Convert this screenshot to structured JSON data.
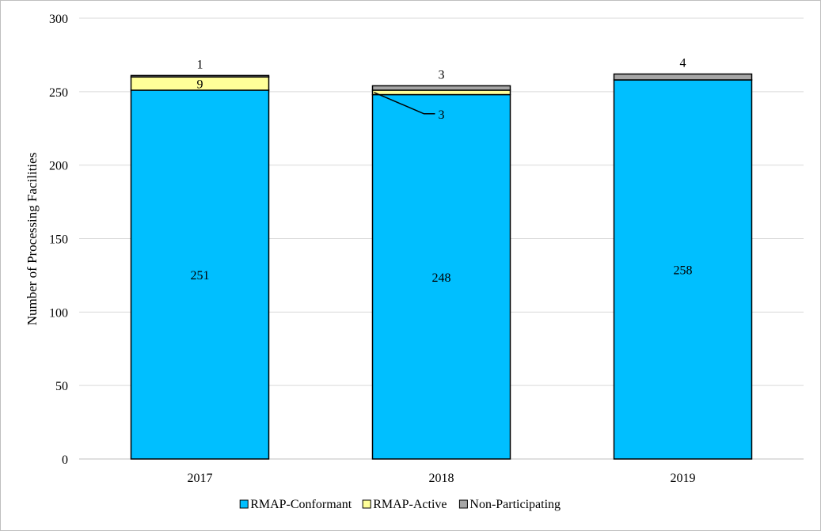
{
  "chart_data": {
    "type": "bar",
    "stacked": true,
    "title": "",
    "xlabel": "",
    "ylabel": "Number of Processing Facilities",
    "ylim": [
      0,
      300
    ],
    "yticks": [
      0,
      50,
      100,
      150,
      200,
      250,
      300
    ],
    "grid": true,
    "legend_position": "bottom",
    "categories": [
      "2017",
      "2018",
      "2019"
    ],
    "series": [
      {
        "name": "RMAP-Conformant",
        "color": "#00BFFF",
        "values": [
          251,
          248,
          258
        ],
        "labels": [
          "251",
          "248",
          "258"
        ]
      },
      {
        "name": "RMAP-Active",
        "color": "#FFFF99",
        "values": [
          9,
          3,
          0
        ],
        "labels": [
          "9",
          "3",
          ""
        ]
      },
      {
        "name": "Non-Participating",
        "color": "#A6A6A6",
        "values": [
          1,
          3,
          4
        ],
        "labels": [
          "1",
          "3",
          "4"
        ]
      }
    ]
  }
}
